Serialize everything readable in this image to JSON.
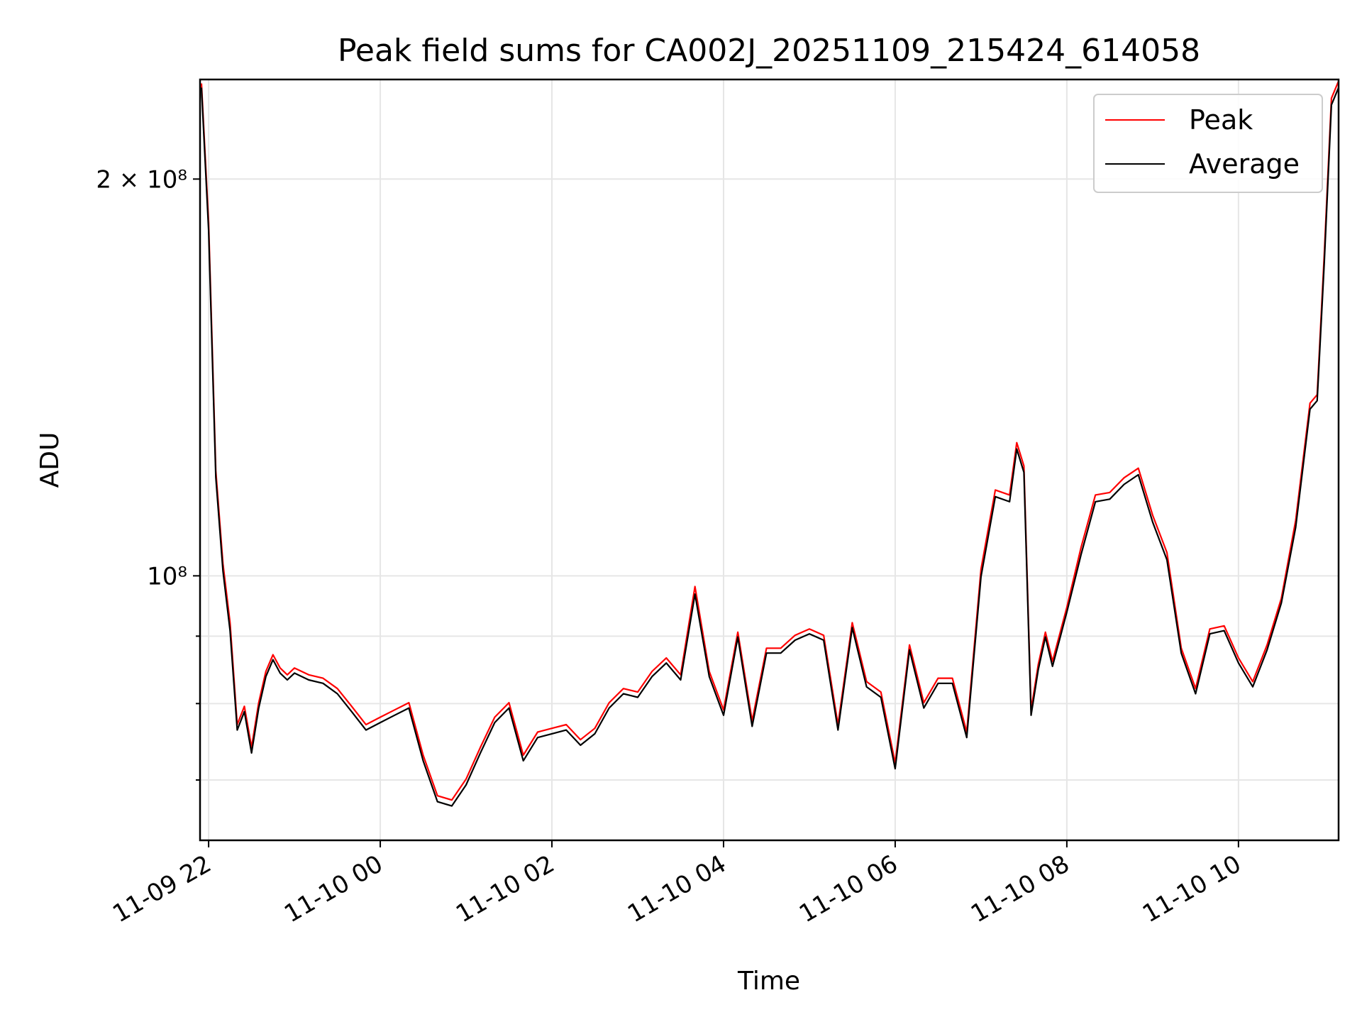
{
  "chart_data": {
    "type": "line",
    "title": "Peak field sums for CA002J_20251109_215424_614058",
    "xlabel": "Time",
    "ylabel": "ADU",
    "y_scale": "log",
    "grid": true,
    "legend_placement": "top-right",
    "xlim": [
      "2025-11-09 21:54",
      "2025-11-10 11:10"
    ],
    "ylim": [
      63000000,
      238000000
    ],
    "x_ticks": [
      "11-09 22",
      "11-10 00",
      "11-10 02",
      "11-10 04",
      "11-10 06",
      "11-10 08",
      "11-10 10"
    ],
    "y_ticks": [
      {
        "value": 200000000,
        "label": "2 × 10⁸",
        "major": true
      },
      {
        "value": 100000000,
        "label": "10⁸",
        "major": true
      },
      {
        "value": 90000000,
        "label": "",
        "major": false
      },
      {
        "value": 80000000,
        "label": "",
        "major": false
      },
      {
        "value": 70000000,
        "label": "",
        "major": false
      }
    ],
    "x": [
      "21:55",
      "22:00",
      "22:05",
      "22:10",
      "22:15",
      "22:20",
      "22:25",
      "22:30",
      "22:35",
      "22:40",
      "22:45",
      "22:50",
      "22:55",
      "23:00",
      "23:10",
      "23:20",
      "23:30",
      "23:40",
      "23:50",
      "00:00",
      "00:10",
      "00:20",
      "00:30",
      "00:40",
      "00:50",
      "01:00",
      "01:10",
      "01:20",
      "01:30",
      "01:40",
      "01:50",
      "02:00",
      "02:10",
      "02:20",
      "02:30",
      "02:40",
      "02:50",
      "03:00",
      "03:10",
      "03:20",
      "03:30",
      "03:40",
      "03:50",
      "04:00",
      "04:10",
      "04:20",
      "04:30",
      "04:40",
      "04:50",
      "05:00",
      "05:10",
      "05:20",
      "05:30",
      "05:40",
      "05:50",
      "06:00",
      "06:10",
      "06:20",
      "06:30",
      "06:40",
      "06:50",
      "07:00",
      "07:10",
      "07:20",
      "07:25",
      "07:30",
      "07:35",
      "07:40",
      "07:45",
      "07:50",
      "08:00",
      "08:10",
      "08:20",
      "08:30",
      "08:40",
      "08:50",
      "09:00",
      "09:10",
      "09:20",
      "09:30",
      "09:40",
      "09:50",
      "10:00",
      "10:10",
      "10:20",
      "10:30",
      "10:40",
      "10:50",
      "10:55",
      "11:00",
      "11:05",
      "11:10"
    ],
    "series": [
      {
        "name": "Peak",
        "color": "#ff0000",
        "values": [
          236000000,
          185000000,
          120000000,
          102000000,
          92000000,
          77000000,
          79500000,
          74000000,
          80000000,
          84500000,
          87000000,
          85000000,
          84000000,
          85000000,
          84000000,
          83500000,
          82000000,
          79500000,
          77000000,
          78000000,
          79000000,
          80000000,
          73000000,
          68000000,
          67500000,
          70000000,
          74000000,
          78000000,
          80000000,
          73000000,
          76000000,
          76500000,
          77000000,
          75000000,
          76500000,
          80000000,
          82000000,
          81500000,
          84500000,
          86500000,
          84000000,
          98000000,
          84500000,
          79000000,
          90500000,
          77500000,
          88000000,
          88000000,
          90000000,
          91000000,
          90000000,
          77000000,
          92000000,
          83000000,
          81500000,
          72000000,
          88500000,
          80000000,
          83500000,
          83500000,
          76000000,
          101000000,
          116000000,
          115000000,
          126000000,
          121000000,
          79000000,
          85500000,
          90500000,
          86000000,
          94500000,
          105000000,
          115000000,
          115500000,
          118500000,
          120500000,
          111000000,
          104000000,
          88000000,
          82000000,
          91000000,
          91500000,
          86500000,
          83000000,
          88500000,
          96000000,
          110000000,
          135000000,
          137000000,
          175000000,
          230000000,
          237000000
        ]
      },
      {
        "name": "Average",
        "color": "#000000",
        "values": [
          235000000,
          183000000,
          119000000,
          101000000,
          91000000,
          76500000,
          79000000,
          73500000,
          79500000,
          84000000,
          86500000,
          84500000,
          83500000,
          84500000,
          83500000,
          83000000,
          81500000,
          79000000,
          76500000,
          77500000,
          78500000,
          79500000,
          72500000,
          67500000,
          67000000,
          69500000,
          73500000,
          77500000,
          79500000,
          72500000,
          75500000,
          76000000,
          76500000,
          74500000,
          76000000,
          79500000,
          81500000,
          81000000,
          84000000,
          86000000,
          83500000,
          97000000,
          84000000,
          78500000,
          90000000,
          77000000,
          87500000,
          87500000,
          89500000,
          90500000,
          89500000,
          76500000,
          91500000,
          82500000,
          81000000,
          71500000,
          88000000,
          79500000,
          83000000,
          83000000,
          75500000,
          100000000,
          115000000,
          114000000,
          125000000,
          120000000,
          78500000,
          85000000,
          90000000,
          85500000,
          94000000,
          104000000,
          114000000,
          114500000,
          117500000,
          119500000,
          110000000,
          103000000,
          87500000,
          81500000,
          90500000,
          91000000,
          86000000,
          82500000,
          88000000,
          95500000,
          109000000,
          134000000,
          136000000,
          173000000,
          228000000,
          235000000
        ]
      }
    ]
  }
}
